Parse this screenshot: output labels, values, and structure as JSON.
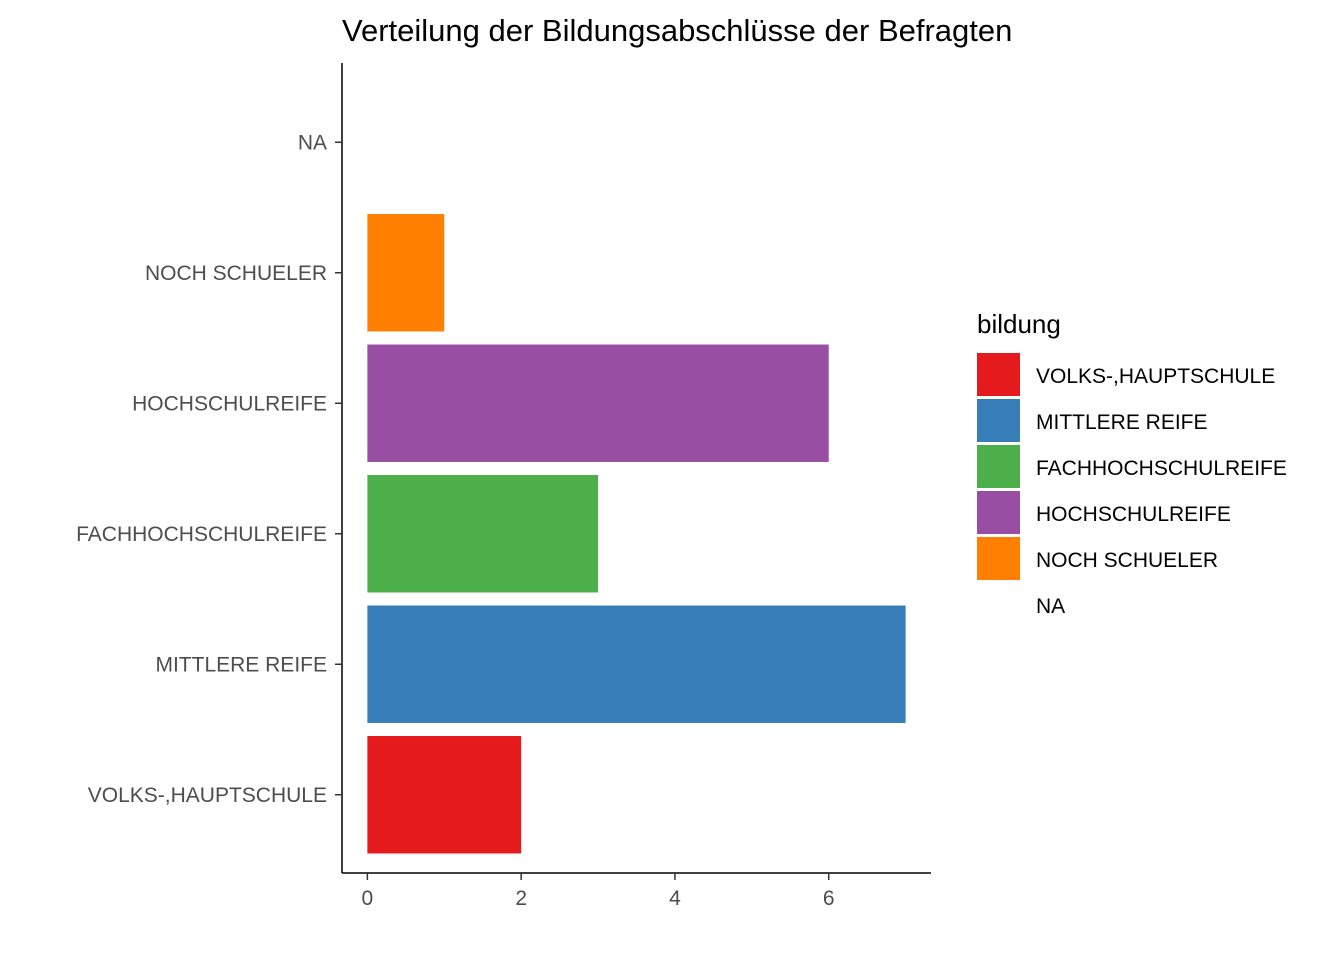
{
  "chart_data": {
    "type": "bar",
    "orientation": "horizontal",
    "title": "Verteilung der Bildungsabschlüsse der Befragten",
    "xlabel": "",
    "ylabel": "",
    "categories": [
      "VOLKS-,HAUPTSCHULE",
      "MITTLERE REIFE",
      "FACHHOCHSCHULREIFE",
      "HOCHSCHULREIFE",
      "NOCH SCHUELER",
      "NA"
    ],
    "values": [
      2,
      7,
      3,
      6,
      1,
      null
    ],
    "colors": [
      "#E41A1C",
      "#377EB8",
      "#4DAF4A",
      "#984EA3",
      "#FF7F00",
      null
    ],
    "xticks": [
      "0",
      "2",
      "4",
      "6"
    ],
    "xtick_values": [
      0,
      2,
      4,
      6
    ],
    "xlim": [
      -0.33,
      7.33
    ],
    "grid": false,
    "legend": {
      "title": "bildung",
      "placement": "right",
      "items": [
        {
          "label": "VOLKS-,HAUPTSCHULE",
          "color": "#E41A1C"
        },
        {
          "label": "MITTLERE REIFE",
          "color": "#377EB8"
        },
        {
          "label": "FACHHOCHSCHULREIFE",
          "color": "#4DAF4A"
        },
        {
          "label": "HOCHSCHULREIFE",
          "color": "#984EA3"
        },
        {
          "label": "NOCH SCHUELER",
          "color": "#FF7F00"
        },
        {
          "label": "NA",
          "color": null
        }
      ]
    }
  }
}
